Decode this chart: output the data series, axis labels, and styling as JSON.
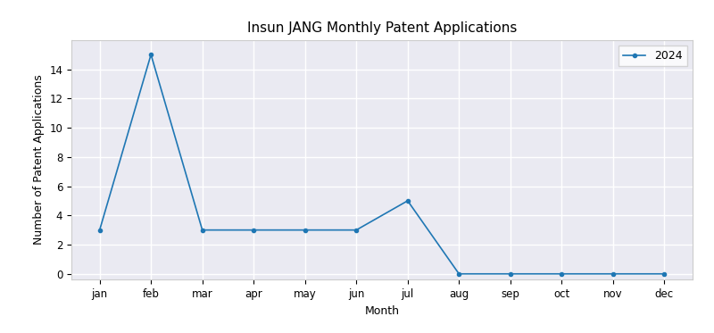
{
  "title": "Insun JANG Monthly Patent Applications",
  "xlabel": "Month",
  "ylabel": "Number of Patent Applications",
  "months": [
    "jan",
    "feb",
    "mar",
    "apr",
    "may",
    "jun",
    "jul",
    "aug",
    "sep",
    "oct",
    "nov",
    "dec"
  ],
  "values_2024": [
    3,
    15,
    3,
    3,
    3,
    3,
    5,
    0,
    0,
    0,
    0,
    0
  ],
  "legend_label": "2024",
  "line_color": "#1f77b4",
  "marker": "o",
  "marker_size": 3,
  "linewidth": 1.2,
  "ylim": [
    -0.4,
    16
  ],
  "yticks": [
    0,
    2,
    4,
    6,
    8,
    10,
    12,
    14
  ],
  "grid": true,
  "figure_facecolor": "#ffffff",
  "axes_facecolor": "#eaeaf2",
  "grid_color": "#ffffff",
  "grid_linewidth": 1.0,
  "title_fontsize": 11,
  "label_fontsize": 9,
  "tick_fontsize": 8.5,
  "legend_fontsize": 9
}
